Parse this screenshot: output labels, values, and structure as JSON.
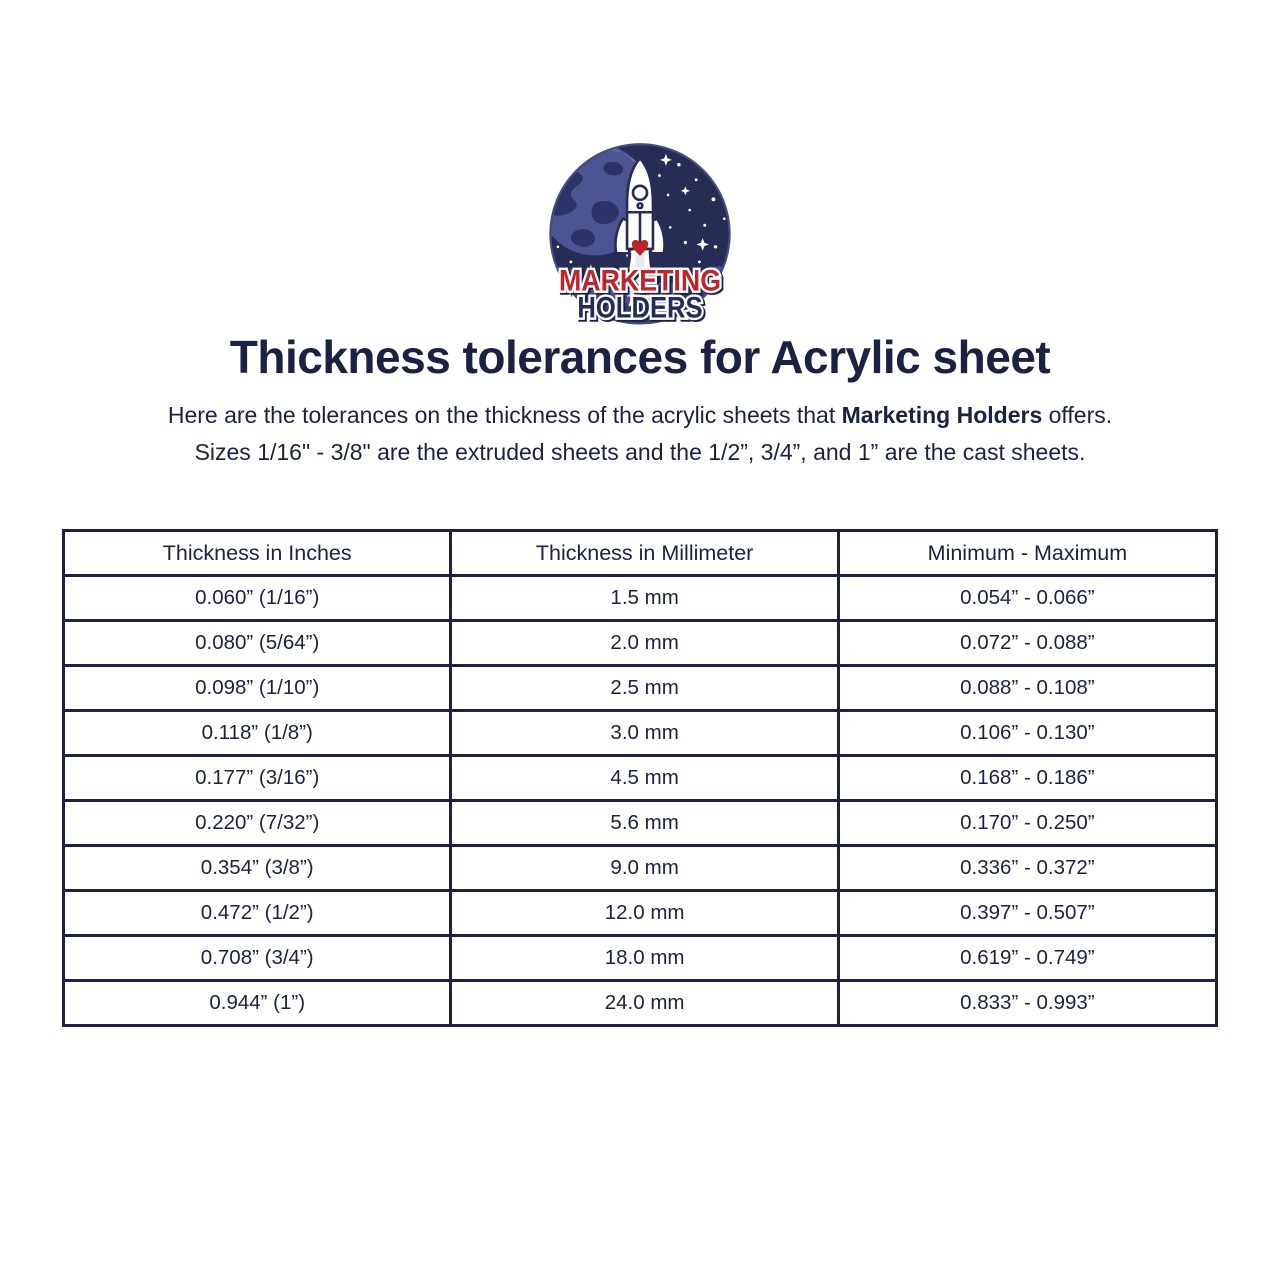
{
  "colors": {
    "navy": "#1b2143",
    "red": "#bf242b",
    "table_border": "#1d2245",
    "badge_sky": "#272c55"
  },
  "logo": {
    "icon": "rocket-earth-badge-icon",
    "brand_line1": "MARKETING",
    "brand_line2": "HOLDERS"
  },
  "title": "Thickness tolerances for Acrylic sheet",
  "intro": {
    "line1_pre": "Here are the tolerances on the thickness of the acrylic sheets that ",
    "line1_bold": "Marketing Holders",
    "line1_post": " offers.",
    "line2": "Sizes 1/16\" - 3/8\" are the extruded sheets and the 1/2”, 3/4”, and 1” are the cast sheets."
  },
  "table": {
    "headers": [
      "Thickness in Inches",
      "Thickness in Millimeter",
      "Minimum - Maximum"
    ],
    "rows": [
      [
        "0.060” (1/16”)",
        "1.5 mm",
        "0.054” - 0.066”"
      ],
      [
        "0.080” (5/64”)",
        "2.0 mm",
        "0.072” - 0.088”"
      ],
      [
        "0.098” (1/10”)",
        "2.5 mm",
        "0.088” - 0.108”"
      ],
      [
        "0.118” (1/8”)",
        "3.0 mm",
        "0.106” - 0.130”"
      ],
      [
        "0.177” (3/16”)",
        "4.5 mm",
        "0.168” - 0.186”"
      ],
      [
        "0.220” (7/32”)",
        "5.6 mm",
        "0.170” - 0.250”"
      ],
      [
        "0.354” (3/8”)",
        "9.0 mm",
        "0.336” - 0.372”"
      ],
      [
        "0.472” (1/2”)",
        "12.0 mm",
        "0.397” - 0.507”"
      ],
      [
        "0.708” (3/4”)",
        "18.0 mm",
        "0.619” - 0.749”"
      ],
      [
        "0.944” (1”)",
        "24.0 mm",
        "0.833” - 0.993”"
      ]
    ]
  }
}
